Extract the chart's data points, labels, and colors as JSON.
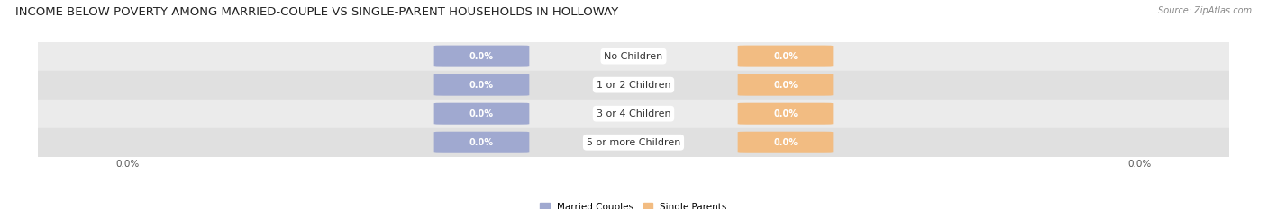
{
  "title": "INCOME BELOW POVERTY AMONG MARRIED-COUPLE VS SINGLE-PARENT HOUSEHOLDS IN HOLLOWAY",
  "source_text": "Source: ZipAtlas.com",
  "categories": [
    "No Children",
    "1 or 2 Children",
    "3 or 4 Children",
    "5 or more Children"
  ],
  "married_values": [
    0.0,
    0.0,
    0.0,
    0.0
  ],
  "single_values": [
    0.0,
    0.0,
    0.0,
    0.0
  ],
  "married_color": "#a0a9d0",
  "single_color": "#f2bc82",
  "row_bg_colors": [
    "#ebebeb",
    "#e0e0e0"
  ],
  "bar_height": 0.72,
  "legend_married": "Married Couples",
  "legend_single": "Single Parents",
  "title_fontsize": 9.5,
  "label_fontsize": 7.5,
  "category_fontsize": 8,
  "value_fontsize": 7,
  "axis_label_left": "0.0%",
  "axis_label_right": "0.0%"
}
